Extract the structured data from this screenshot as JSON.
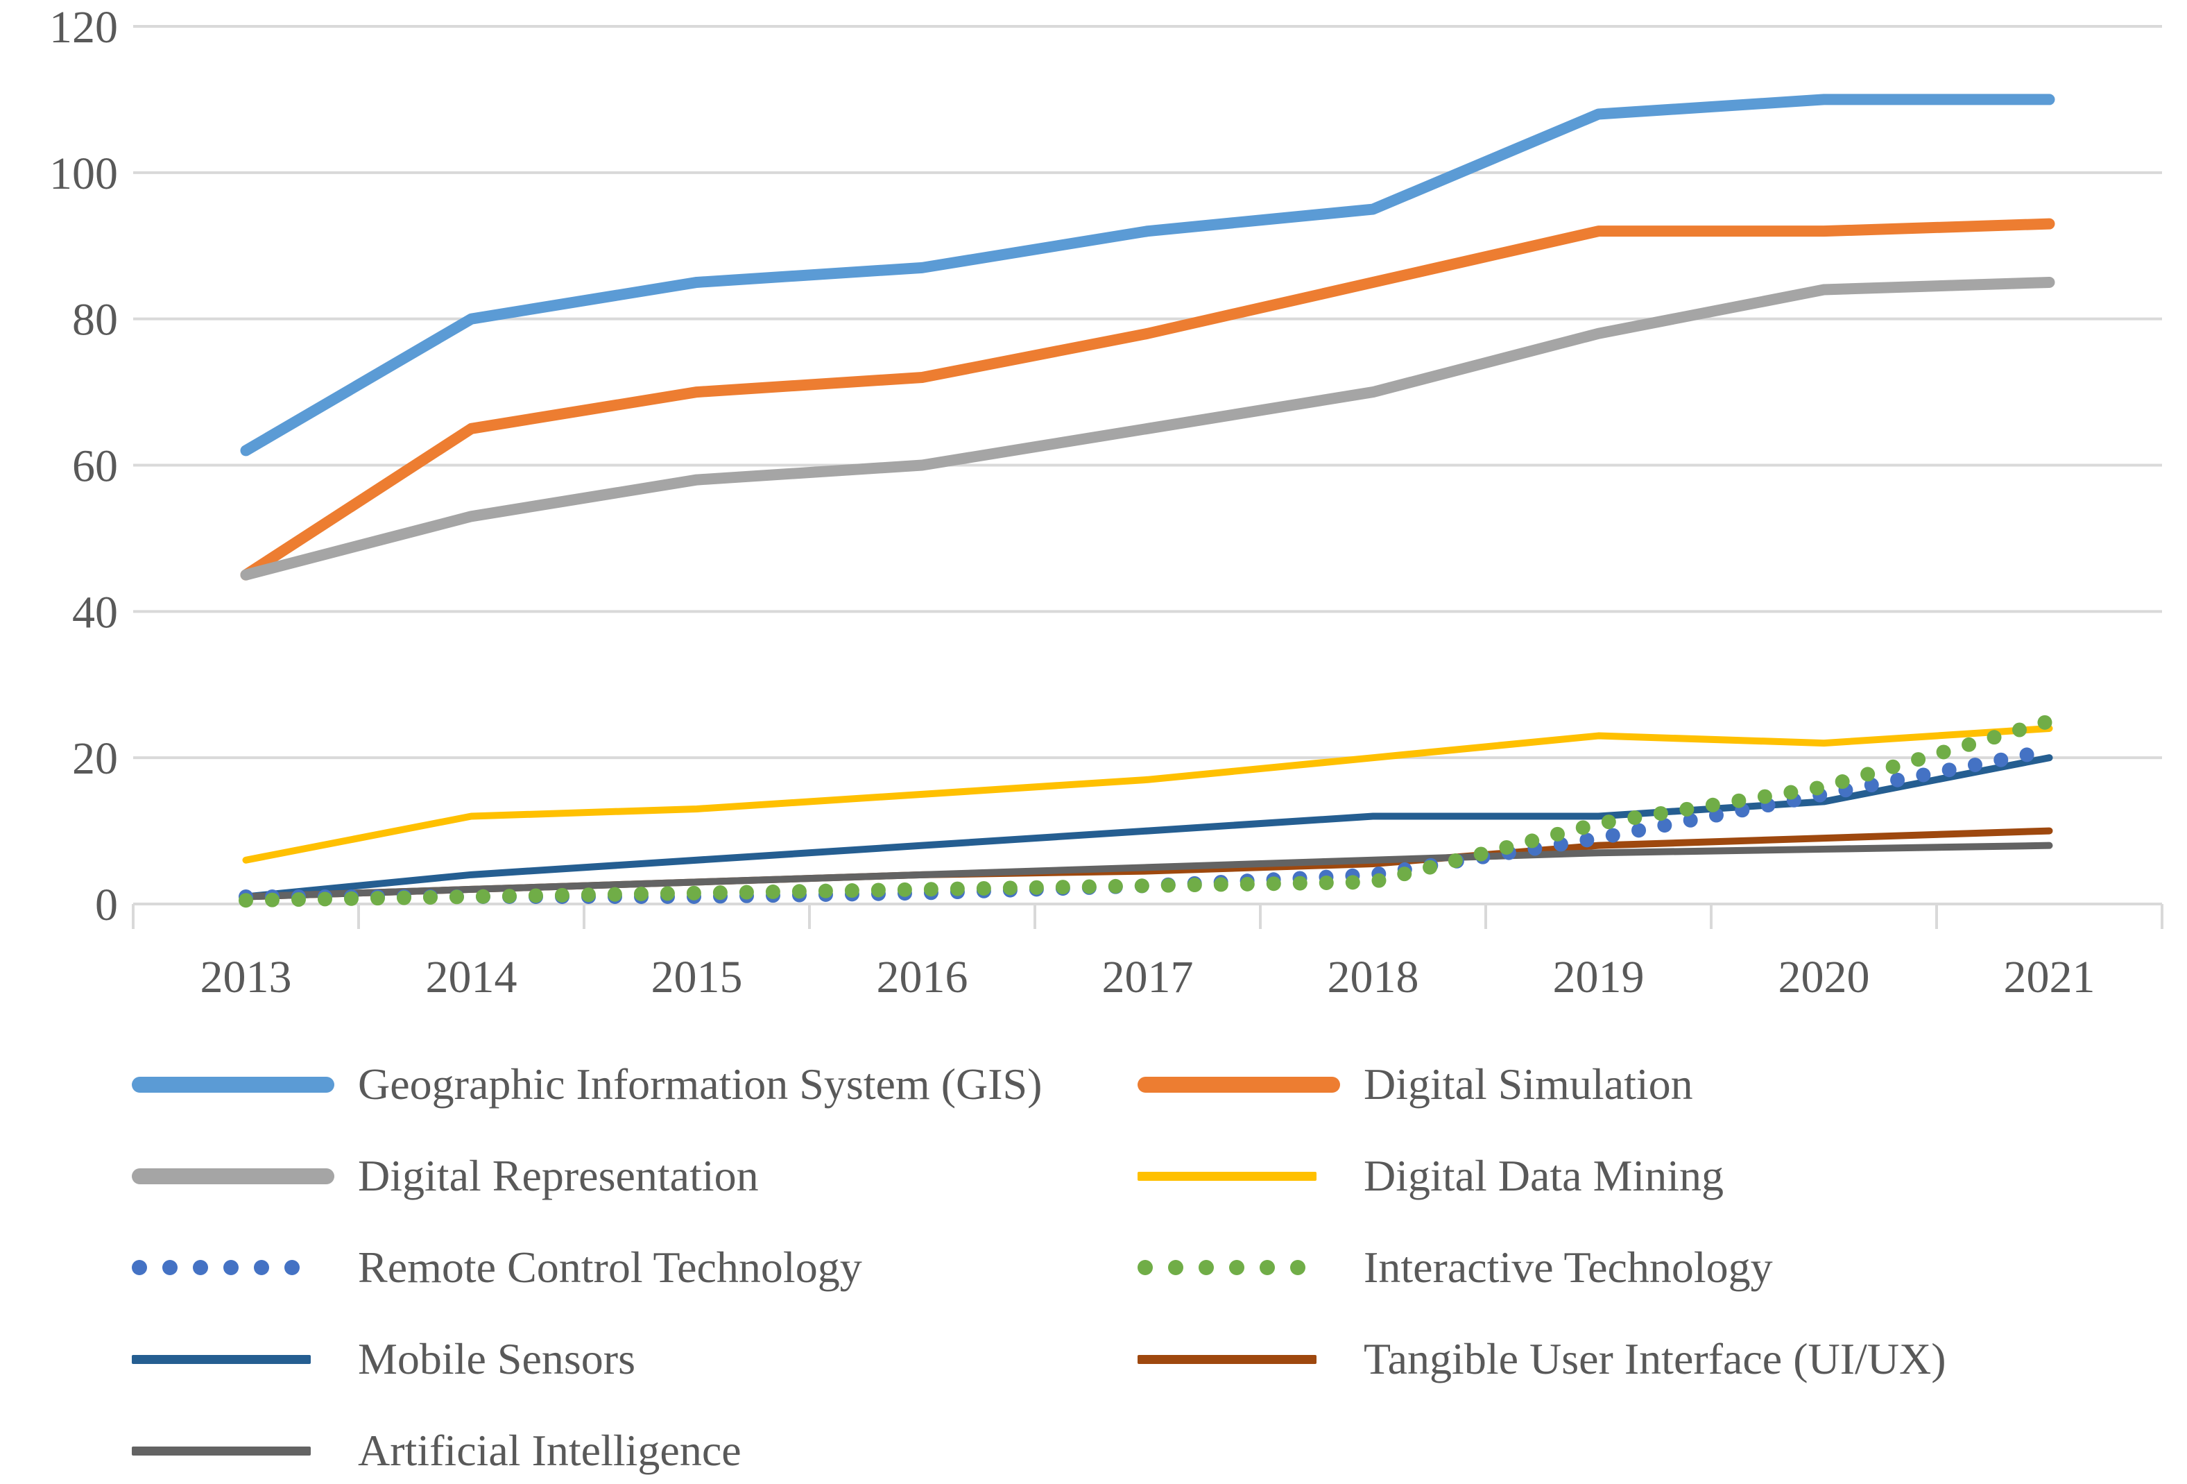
{
  "chart_data": {
    "type": "line",
    "title": "",
    "xlabel": "",
    "ylabel": "",
    "categories": [
      "2013",
      "2014",
      "2015",
      "2016",
      "2017",
      "2018",
      "2019",
      "2020",
      "2021"
    ],
    "yticks": [
      0,
      20,
      40,
      60,
      80,
      100,
      120
    ],
    "ylim": [
      0,
      120
    ],
    "grid": "horizontal",
    "legend_position": "bottom",
    "axis_color": "#D9D9D9",
    "tick_label_color": "#595959",
    "series": [
      {
        "name": "Geographic Information System (GIS)",
        "color": "#5B9BD5",
        "style": "thick",
        "values": [
          62,
          80,
          85,
          87,
          92,
          95,
          108,
          110,
          110
        ]
      },
      {
        "name": "Digital Simulation",
        "color": "#ED7D31",
        "style": "thick",
        "values": [
          45,
          65,
          70,
          72,
          78,
          85,
          92,
          92,
          93
        ]
      },
      {
        "name": "Digital Representation",
        "color": "#A5A5A5",
        "style": "thick",
        "values": [
          45,
          53,
          58,
          60,
          65,
          70,
          78,
          84,
          85
        ]
      },
      {
        "name": "Digital Data Mining",
        "color": "#FFC000",
        "style": "thin",
        "values": [
          6,
          12,
          13,
          15,
          17,
          20,
          23,
          22,
          24
        ]
      },
      {
        "name": "Remote Control Technology",
        "color": "#4472C4",
        "style": "dots",
        "values": [
          1,
          1,
          1,
          1.5,
          2.5,
          4,
          9,
          15,
          21
        ]
      },
      {
        "name": "Interactive Technology",
        "color": "#70AD47",
        "style": "dots",
        "values": [
          0.5,
          1,
          1.5,
          2,
          2.5,
          3,
          11,
          16,
          25
        ]
      },
      {
        "name": "Mobile Sensors",
        "color": "#255E91",
        "style": "thin",
        "values": [
          1,
          4,
          6,
          8,
          10,
          12,
          12,
          14,
          20
        ]
      },
      {
        "name": "Tangible User Interface (UI/UX)",
        "color": "#9E480E",
        "style": "thin",
        "values": [
          1,
          2,
          3,
          4,
          4.5,
          5.5,
          8,
          9,
          10
        ]
      },
      {
        "name": "Artificial Intelligence",
        "color": "#636363",
        "style": "thin",
        "values": [
          1,
          2,
          3,
          4,
          5,
          6,
          7,
          7.5,
          8
        ]
      }
    ]
  }
}
